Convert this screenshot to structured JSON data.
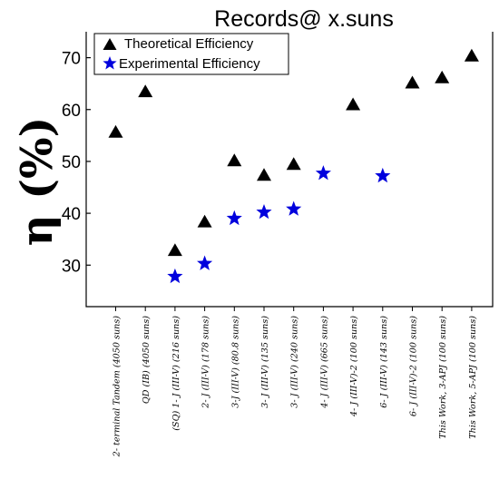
{
  "chart_data": {
    "type": "scatter",
    "title": "Records@ x.suns",
    "ylabel": "η (%)",
    "xlabel": "",
    "ylim": [
      22,
      75
    ],
    "yticks": [
      30,
      40,
      50,
      60,
      70
    ],
    "grid": false,
    "legend_position": "top-left",
    "categories": [
      "2- terminal Tandem (4050 suns)",
      "QD (IB) (4050 suns)",
      "(SQ) 1- J (III-V) (216 suns)",
      "2- J (III-V) (178 suns)",
      "3-J (III-V) (80.8 suns)",
      "3- J (III-V) (135 suns)",
      "3- J (III-V) (240 suns)",
      "4- J (III-V) (665 suns)",
      "4- J (III-V)-2 (100 suns)",
      "6- J (III-V) (143 suns)",
      "6- J (III-V)-2 (100 suns)",
      "This Work, 3-APJ (100 suns)",
      "This Work, 5-APJ (100 suns)"
    ],
    "series": [
      {
        "name": "Theoretical Efficiency",
        "marker": "triangle",
        "color": "#000000",
        "values": [
          55.5,
          63.3,
          32.7,
          38.2,
          50.0,
          47.2,
          49.3,
          null,
          60.8,
          null,
          65.0,
          66.0,
          70.2
        ]
      },
      {
        "name": "Experimental Efficiency",
        "marker": "star",
        "color": "#0000dd",
        "values": [
          null,
          null,
          27.8,
          30.3,
          39.0,
          40.2,
          40.8,
          47.7,
          null,
          47.2,
          null,
          null,
          null
        ]
      }
    ]
  }
}
